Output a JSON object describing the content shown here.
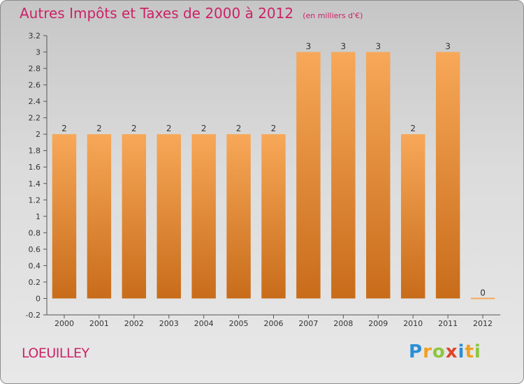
{
  "header": {
    "title": "Autres Impôts et Taxes de 2000 à 2012",
    "subtitle": "(en milliers d'€)"
  },
  "footer": {
    "location": "LOEUILLEY",
    "brand": "Proxiti"
  },
  "colors": {
    "title": "#cc2266",
    "bar_top": "#f7a858",
    "bar_bottom": "#c86c1a"
  },
  "chart_data": {
    "type": "bar",
    "categories": [
      "2000",
      "2001",
      "2002",
      "2003",
      "2004",
      "2005",
      "2006",
      "2007",
      "2008",
      "2009",
      "2010",
      "2011",
      "2012"
    ],
    "values": [
      2,
      2,
      2,
      2,
      2,
      2,
      2,
      3,
      3,
      3,
      2,
      3,
      0
    ],
    "data_labels": [
      "2",
      "2",
      "2",
      "2",
      "2",
      "2",
      "2",
      "3",
      "3",
      "3",
      "2",
      "3",
      "0"
    ],
    "ylim": [
      -0.2,
      3.2
    ],
    "y_ticks": [
      -0.2,
      0,
      0.2,
      0.4,
      0.6,
      0.8,
      1,
      1.2,
      1.4,
      1.6,
      1.8,
      2,
      2.2,
      2.4,
      2.6,
      2.8,
      3,
      3.2
    ],
    "y_tick_labels": [
      "-0.2",
      "0",
      "0.2",
      "0.4",
      "0.6",
      "0.8",
      "1",
      "1.2",
      "1.4",
      "1.6",
      "1.8",
      "2",
      "2.2",
      "2.4",
      "2.6",
      "2.8",
      "3",
      "3.2"
    ],
    "grid": false
  }
}
